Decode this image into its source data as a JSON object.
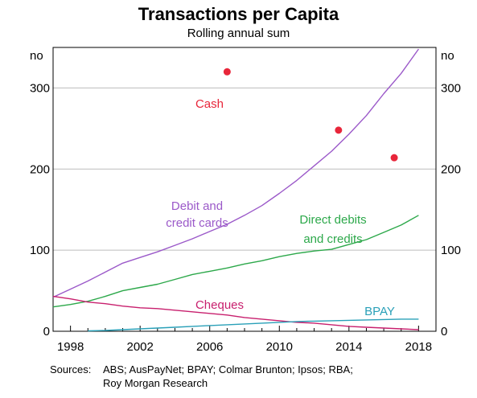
{
  "title": "Transactions per Capita",
  "subtitle": "Rolling annual sum",
  "unit_left": "no",
  "unit_right": "no",
  "sources_label": "Sources:",
  "sources_line1": "ABS; AusPayNet; BPAY; Colmar Brunton; Ipsos; RBA;",
  "sources_line2": "Roy Morgan Research",
  "colors": {
    "debit_credit": "#9b59c9",
    "direct": "#2ca84a",
    "cheques": "#c8206e",
    "bpay": "#2aa0b8",
    "cash": "#e8263a",
    "grid": "#bdbdbd",
    "axis": "#000000"
  },
  "chart_data": {
    "type": "line",
    "title": "Transactions per Capita",
    "subtitle": "Rolling annual sum",
    "ylabel": "no",
    "xlim": [
      1997,
      2019
    ],
    "ylim": [
      0,
      350
    ],
    "x_ticks": [
      1998,
      2002,
      2006,
      2010,
      2014,
      2018
    ],
    "x_tick_labels": [
      "1998",
      "2002",
      "2006",
      "2010",
      "2014",
      "2018"
    ],
    "y_ticks": [
      0,
      100,
      200,
      300
    ],
    "y_tick_labels": [
      "0",
      "100",
      "200",
      "300"
    ],
    "grid": true,
    "series": [
      {
        "name": "Debit and credit cards",
        "label_lines": [
          "Debit and",
          "credit cards"
        ],
        "color_key": "debit_credit",
        "x": [
          1997,
          1998,
          1999,
          2000,
          2001,
          2002,
          2003,
          2004,
          2005,
          2006,
          2007,
          2008,
          2009,
          2010,
          2011,
          2012,
          2013,
          2014,
          2015,
          2016,
          2017,
          2018
        ],
        "y": [
          42,
          52,
          62,
          73,
          84,
          91,
          98,
          106,
          114,
          123,
          132,
          143,
          155,
          170,
          186,
          204,
          222,
          243,
          266,
          293,
          318,
          348
        ]
      },
      {
        "name": "Direct debits and credits",
        "label_lines": [
          "Direct debits",
          "and credits"
        ],
        "color_key": "direct",
        "x": [
          1997,
          1998,
          1999,
          2000,
          2001,
          2002,
          2003,
          2004,
          2005,
          2006,
          2007,
          2008,
          2009,
          2010,
          2011,
          2012,
          2013,
          2014,
          2015,
          2016,
          2017,
          2018
        ],
        "y": [
          30,
          33,
          37,
          43,
          50,
          54,
          58,
          64,
          70,
          74,
          78,
          83,
          87,
          92,
          96,
          99,
          101,
          107,
          113,
          122,
          131,
          143
        ]
      },
      {
        "name": "Cheques",
        "label_lines": [
          "Cheques"
        ],
        "color_key": "cheques",
        "x": [
          1997,
          1998,
          1999,
          2000,
          2001,
          2002,
          2003,
          2004,
          2005,
          2006,
          2007,
          2008,
          2009,
          2010,
          2011,
          2012,
          2013,
          2014,
          2015,
          2016,
          2017,
          2018
        ],
        "y": [
          43,
          40,
          36,
          34,
          31,
          29,
          28,
          26,
          24,
          22,
          20,
          17,
          15,
          13,
          11,
          10,
          8,
          6,
          5,
          4,
          3,
          2
        ]
      },
      {
        "name": "BPAY",
        "label_lines": [
          "BPAY"
        ],
        "color_key": "bpay",
        "x": [
          1999,
          2000,
          2001,
          2002,
          2003,
          2004,
          2005,
          2006,
          2007,
          2008,
          2009,
          2010,
          2011,
          2012,
          2013,
          2014,
          2015,
          2016,
          2017,
          2018
        ],
        "y": [
          0.5,
          1,
          2,
          3,
          4,
          5,
          6,
          7,
          8,
          9,
          10,
          11,
          12,
          12.5,
          13,
          13.5,
          14,
          14.5,
          15,
          15
        ]
      },
      {
        "name": "Cash",
        "label_lines": [
          "Cash"
        ],
        "color_key": "cash",
        "type": "scatter",
        "x": [
          2007,
          2013.4,
          2016.6
        ],
        "y": [
          320,
          248,
          214
        ]
      }
    ]
  }
}
